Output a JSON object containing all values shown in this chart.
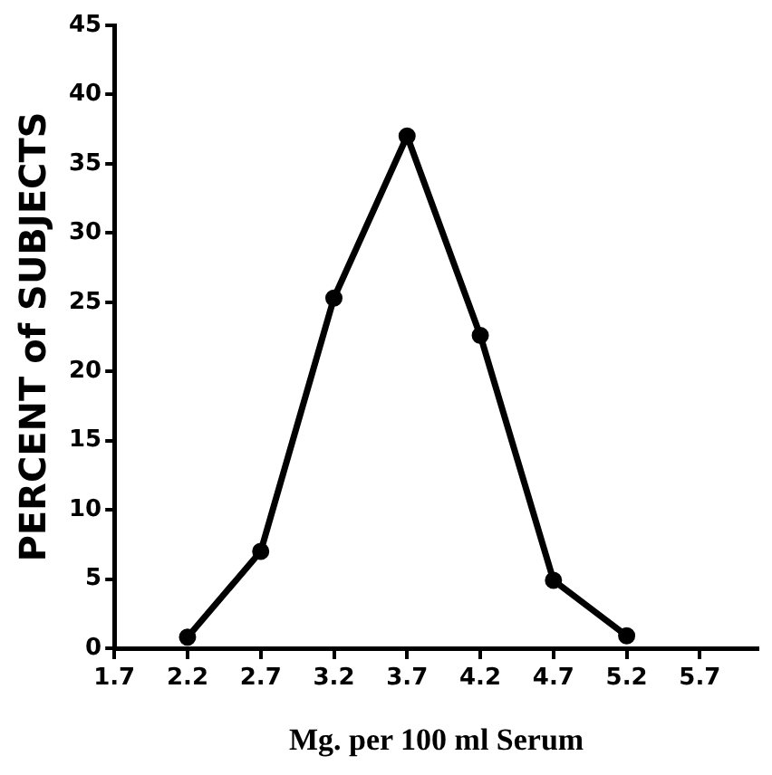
{
  "chart_data": {
    "type": "line",
    "xlabel": "Mg. per 100 ml Serum",
    "ylabel": "PERCENT of SUBJECTS",
    "x": [
      2.2,
      2.7,
      3.2,
      3.7,
      4.2,
      4.7,
      5.2
    ],
    "series": [
      {
        "color": "#000000",
        "values": [
          0.8,
          7.0,
          25.3,
          37.0,
          22.6,
          4.9,
          0.9
        ]
      }
    ],
    "xlim": [
      1.7,
      6.1
    ],
    "xticks": [
      1.7,
      2.2,
      2.7,
      3.2,
      3.7,
      4.2,
      4.7,
      5.2,
      5.7
    ],
    "ylim": [
      0,
      45
    ],
    "yticks": [
      0,
      5,
      10,
      15,
      20,
      25,
      30,
      35,
      40,
      45
    ],
    "grid": false,
    "legend": false,
    "marker": "circle",
    "line_style": "solid"
  }
}
